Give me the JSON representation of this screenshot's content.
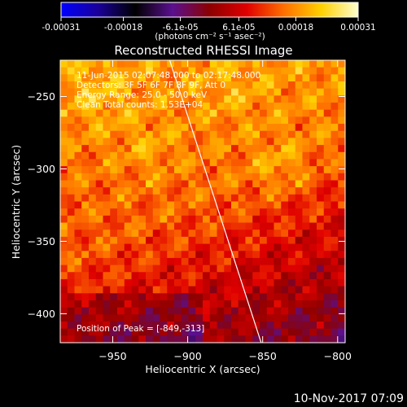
{
  "chart_data": {
    "type": "heatmap",
    "title": "Reconstructed RHESSI Image",
    "xlabel": "Heliocentric X (arcsec)",
    "ylabel": "Heliocentric Y (arcsec)",
    "xlim": [
      -985,
      -795
    ],
    "ylim": [
      -420,
      -225
    ],
    "x_ticks": [
      -950,
      -900,
      -850,
      -800
    ],
    "y_ticks": [
      -250,
      -300,
      -350,
      -400
    ],
    "colorbar": {
      "range": [
        -0.00031,
        0.00031
      ],
      "ticks": [
        {
          "value": -0.00031,
          "label": "-0.00031"
        },
        {
          "value": -0.00018,
          "label": "-0.00018"
        },
        {
          "value": -6.1e-05,
          "label": "-6.1e-05"
        },
        {
          "value": 6.1e-05,
          "label": "6.1e-05"
        },
        {
          "value": 0.00018,
          "label": "0.00018"
        },
        {
          "value": 0.00031,
          "label": "0.00031"
        }
      ],
      "units_label": "(photons cm⁻² s⁻¹ asec⁻²)",
      "colormap": [
        "#0000ff",
        "#1a0099",
        "#000000",
        "#5a1090",
        "#8c0000",
        "#e00000",
        "#ff7000",
        "#ffd000",
        "#ffffd0"
      ]
    },
    "annotations": [
      "11-Jun-2015 02:07:48.000 to 02:17:48.000",
      "Detectors: 3F 5F 6F 7F 8F 9F, Att 0",
      "Energy Range: 25.0 - 50.0 keV",
      "Clean     Total counts: 1.53E+04"
    ],
    "peak_label": "Position of Peak = [-849,-313]",
    "peak": [
      -849,
      -313
    ],
    "limb_line": [
      [
        -912,
        -225
      ],
      [
        -851,
        -420
      ]
    ],
    "timestamp": "10-Nov-2017 07:09"
  }
}
